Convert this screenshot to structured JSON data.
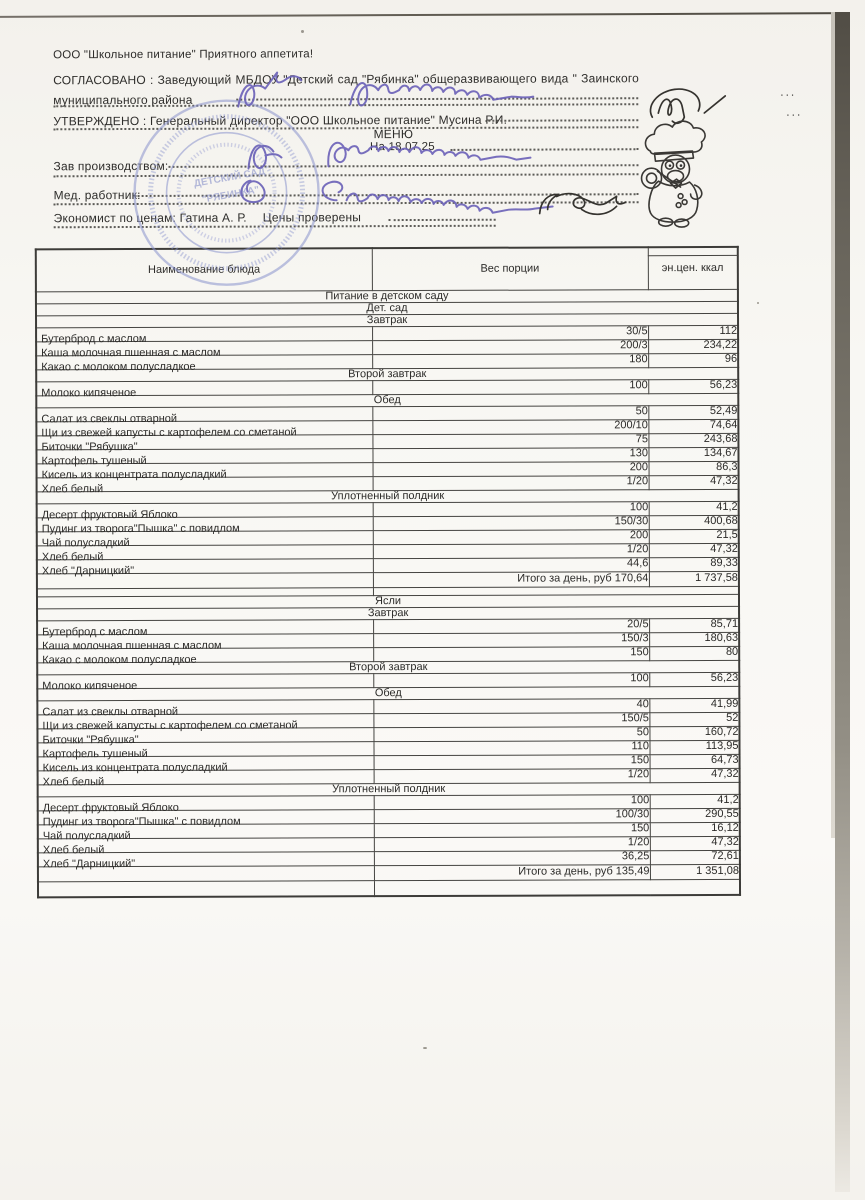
{
  "header": {
    "company": "ООО \"Школьное питание\" Приятного аппетита!",
    "agreed_line1": "СОГЛАСОВАНО : Заведующий МБДОУ \"Детский сад \"Рябинка\" общеразвивающего вида \" Заинского",
    "agreed_line2": "муниципального района",
    "approved": "УТВЕРЖДЕНО : Генеральный директор \"ООО Школьное питание\" Мусина Р.И.",
    "menu_title": "МЕНЮ",
    "menu_date": "На 18.07.25",
    "production_label": "Зав производством:",
    "medical_label": "Мед. работник:",
    "economist_label": "Экономист по ценам: Гатина А. Р.",
    "prices_checked": "Цены проверены",
    "dots3": "..."
  },
  "stamp": {
    "line1": "ДЕТСКИЙ САД",
    "line2": "\"РЯБИНКА\""
  },
  "table": {
    "columns": [
      "Наименование блюда",
      "Вес порции",
      "эн.цен. ккал"
    ],
    "rows": [
      {
        "t": "band",
        "label": "Питание в детском саду"
      },
      {
        "t": "band",
        "label": "Дет. сад"
      },
      {
        "t": "band",
        "label": "Завтрак"
      },
      {
        "t": "item",
        "name": "Бутерброд с маслом",
        "weight": "30/5",
        "kcal": "112"
      },
      {
        "t": "item",
        "name": "Каша молочная пшенная с маслом",
        "weight": "200/3",
        "kcal": "234,22"
      },
      {
        "t": "item",
        "name": "Какао с молоком полусладкое",
        "weight": "180",
        "kcal": "96"
      },
      {
        "t": "band",
        "label": "Второй завтрак"
      },
      {
        "t": "item",
        "name": "Молоко кипяченое",
        "weight": "100",
        "kcal": "56,23"
      },
      {
        "t": "band",
        "label": "Обед"
      },
      {
        "t": "item",
        "name": "Салат из свеклы отварной",
        "weight": "50",
        "kcal": "52,49"
      },
      {
        "t": "item",
        "name": "Щи из свежей капусты с картофелем со сметаной",
        "weight": "200/10",
        "kcal": "74,64"
      },
      {
        "t": "item",
        "name": "Биточки \"Рябушка\"",
        "weight": "75",
        "kcal": "243,68"
      },
      {
        "t": "item",
        "name": "Картофель тушеный",
        "weight": "130",
        "kcal": "134,67"
      },
      {
        "t": "item",
        "name": "Кисель из концентрата полусладкий",
        "weight": "200",
        "kcal": "86,3"
      },
      {
        "t": "item",
        "name": "Хлеб белый",
        "weight": "1/20",
        "kcal": "47,32"
      },
      {
        "t": "band",
        "label": "Уплотненный полдник"
      },
      {
        "t": "item",
        "name": "Десерт фруктовый Яблоко",
        "weight": "100",
        "kcal": "41,2"
      },
      {
        "t": "item",
        "name": "Пудинг из творога\"Пышка\" с повидлом",
        "weight": "150/30",
        "kcal": "400,68"
      },
      {
        "t": "item",
        "name": "Чай полусладкий",
        "weight": "200",
        "kcal": "21,5"
      },
      {
        "t": "item",
        "name": "Хлеб белый",
        "weight": "1/20",
        "kcal": "47,32"
      },
      {
        "t": "item",
        "name": "Хлеб \"Дарницкий\"",
        "weight": "44,6",
        "kcal": "89,33"
      },
      {
        "t": "total",
        "label": "Итого за день, руб",
        "value": "170,64",
        "kcal": "1 737,58"
      },
      {
        "t": "gap"
      },
      {
        "t": "band",
        "label": "Ясли"
      },
      {
        "t": "band",
        "label": "Завтрак"
      },
      {
        "t": "item",
        "name": "Бутерброд с маслом",
        "weight": "20/5",
        "kcal": "85,71"
      },
      {
        "t": "item",
        "name": "Каша молочная пшенная с маслом",
        "weight": "150/3",
        "kcal": "180,63"
      },
      {
        "t": "item",
        "name": "Какао с молоком полусладкое",
        "weight": "150",
        "kcal": "80"
      },
      {
        "t": "band",
        "label": "Второй завтрак"
      },
      {
        "t": "item",
        "name": "Молоко кипяченое",
        "weight": "100",
        "kcal": "56,23"
      },
      {
        "t": "band",
        "label": "Обед"
      },
      {
        "t": "item",
        "name": "Салат из свеклы отварной",
        "weight": "40",
        "kcal": "41,99"
      },
      {
        "t": "item",
        "name": "Щи из свежей капусты с картофелем со сметаной",
        "weight": "150/5",
        "kcal": "52"
      },
      {
        "t": "item",
        "name": "Биточки \"Рябушка\"",
        "weight": "50",
        "kcal": "160,72"
      },
      {
        "t": "item",
        "name": "Картофель тушеный",
        "weight": "110",
        "kcal": "113,95"
      },
      {
        "t": "item",
        "name": "Кисель из концентрата полусладкий",
        "weight": "150",
        "kcal": "64,73"
      },
      {
        "t": "item",
        "name": "Хлеб белый",
        "weight": "1/20",
        "kcal": "47,32"
      },
      {
        "t": "band",
        "label": "Уплотненный полдник"
      },
      {
        "t": "item",
        "name": "Десерт фруктовый Яблоко",
        "weight": "100",
        "kcal": "41,2"
      },
      {
        "t": "item",
        "name": "Пудинг из творога\"Пышка\" с повидлом",
        "weight": "100/30",
        "kcal": "290,55"
      },
      {
        "t": "item",
        "name": "Чай полусладкий",
        "weight": "150",
        "kcal": "16,12"
      },
      {
        "t": "item",
        "name": "Хлеб белый",
        "weight": "1/20",
        "kcal": "47,32"
      },
      {
        "t": "item",
        "name": "Хлеб \"Дарницкий\"",
        "weight": "36,25",
        "kcal": "72,61"
      },
      {
        "t": "total",
        "label": "Итого за день, руб",
        "value": "135,49",
        "kcal": "1 351,08"
      },
      {
        "t": "end"
      }
    ]
  }
}
